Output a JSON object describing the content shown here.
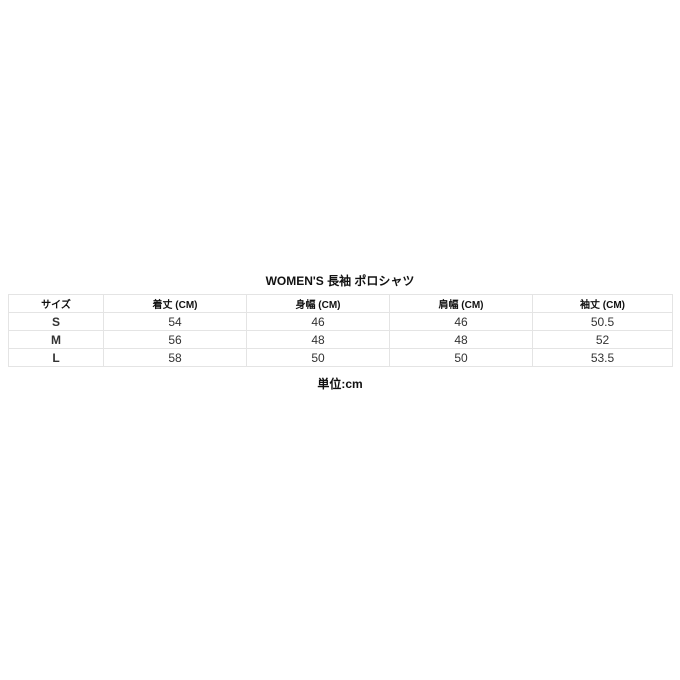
{
  "title": "WOMEN'S 長袖 ポロシャツ",
  "table": {
    "headers": [
      "サイズ",
      "着丈 (CM)",
      "身幅 (CM)",
      "肩幅 (CM)",
      "袖丈 (CM)"
    ],
    "rows": [
      [
        "S",
        "54",
        "46",
        "46",
        "50.5"
      ],
      [
        "M",
        "56",
        "48",
        "48",
        "52"
      ],
      [
        "L",
        "58",
        "50",
        "50",
        "53.5"
      ]
    ]
  },
  "unit": "単位:cm"
}
